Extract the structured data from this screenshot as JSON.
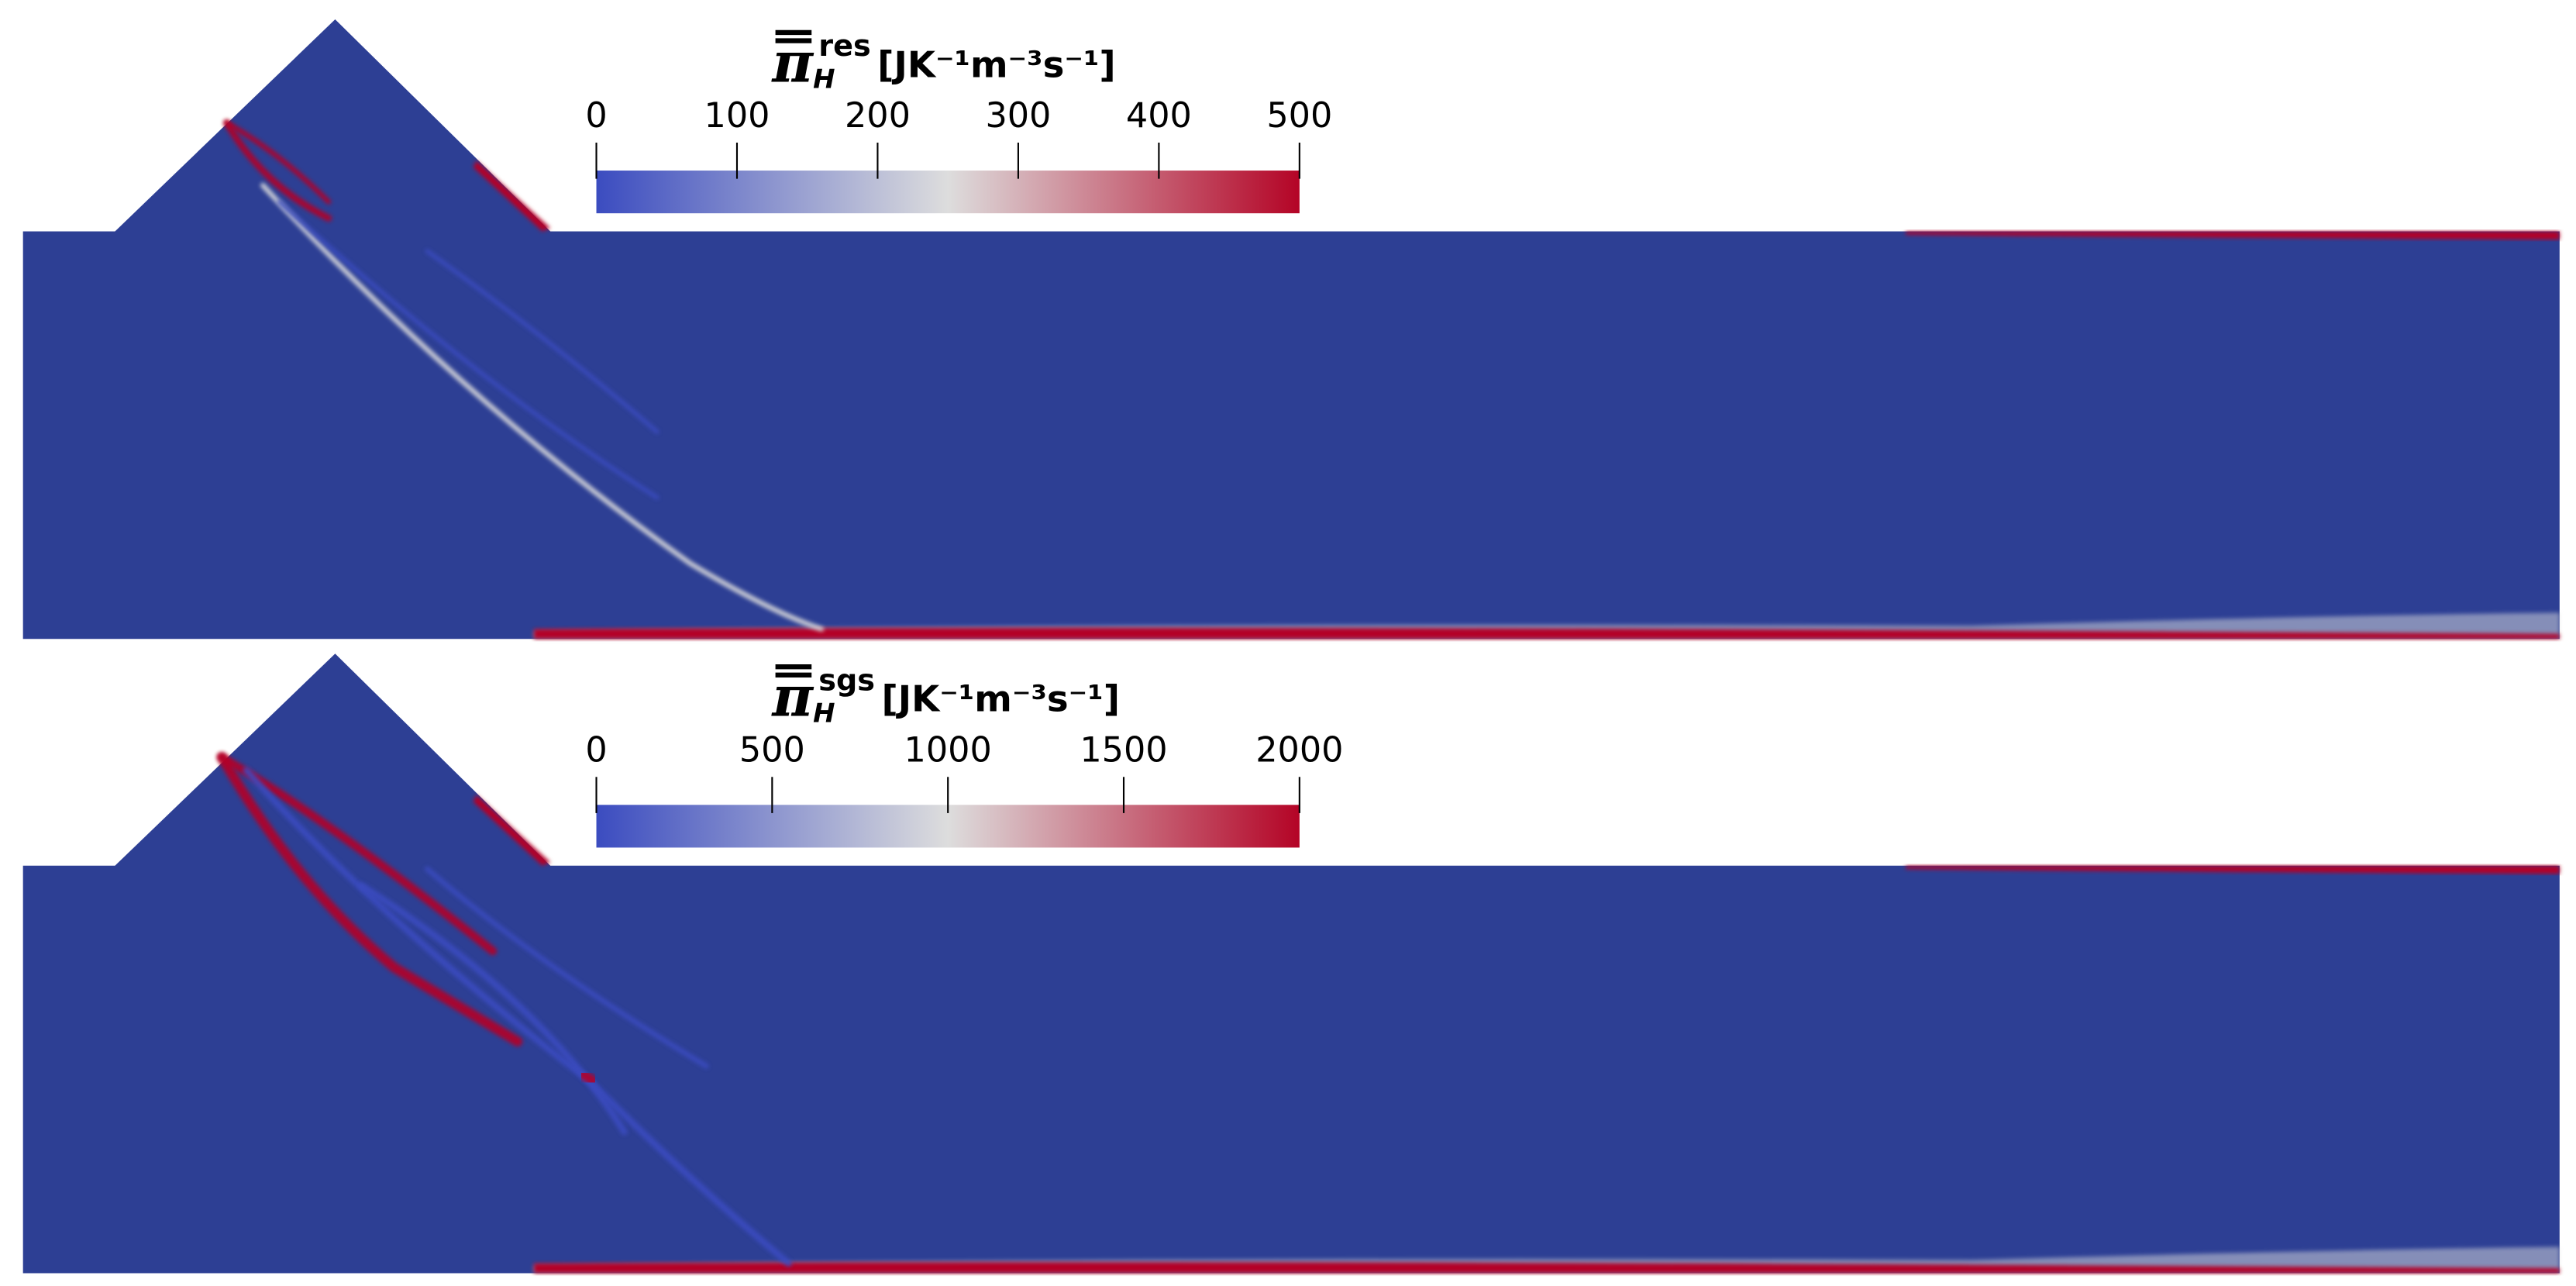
{
  "chart_data": [
    {
      "type": "field",
      "symbol": "π",
      "subscript": "H",
      "superscript": "res",
      "unit": "[JK⁻¹m⁻³s⁻¹]",
      "clim": [
        0,
        500
      ],
      "ticks": [
        0,
        100,
        200,
        300,
        400,
        500
      ],
      "colormap": [
        "#3b4cc0",
        "#dddddd",
        "#b40426"
      ],
      "field_color": "#2d3f94"
    },
    {
      "type": "field",
      "symbol": "π",
      "subscript": "H",
      "superscript": "sgs",
      "unit": "[JK⁻¹m⁻³s⁻¹]",
      "clim": [
        0,
        2000
      ],
      "ticks": [
        0,
        500,
        1000,
        1500,
        2000
      ],
      "colormap": [
        "#3b4cc0",
        "#dddddd",
        "#b40426"
      ],
      "field_color": "#2d3f94"
    }
  ]
}
